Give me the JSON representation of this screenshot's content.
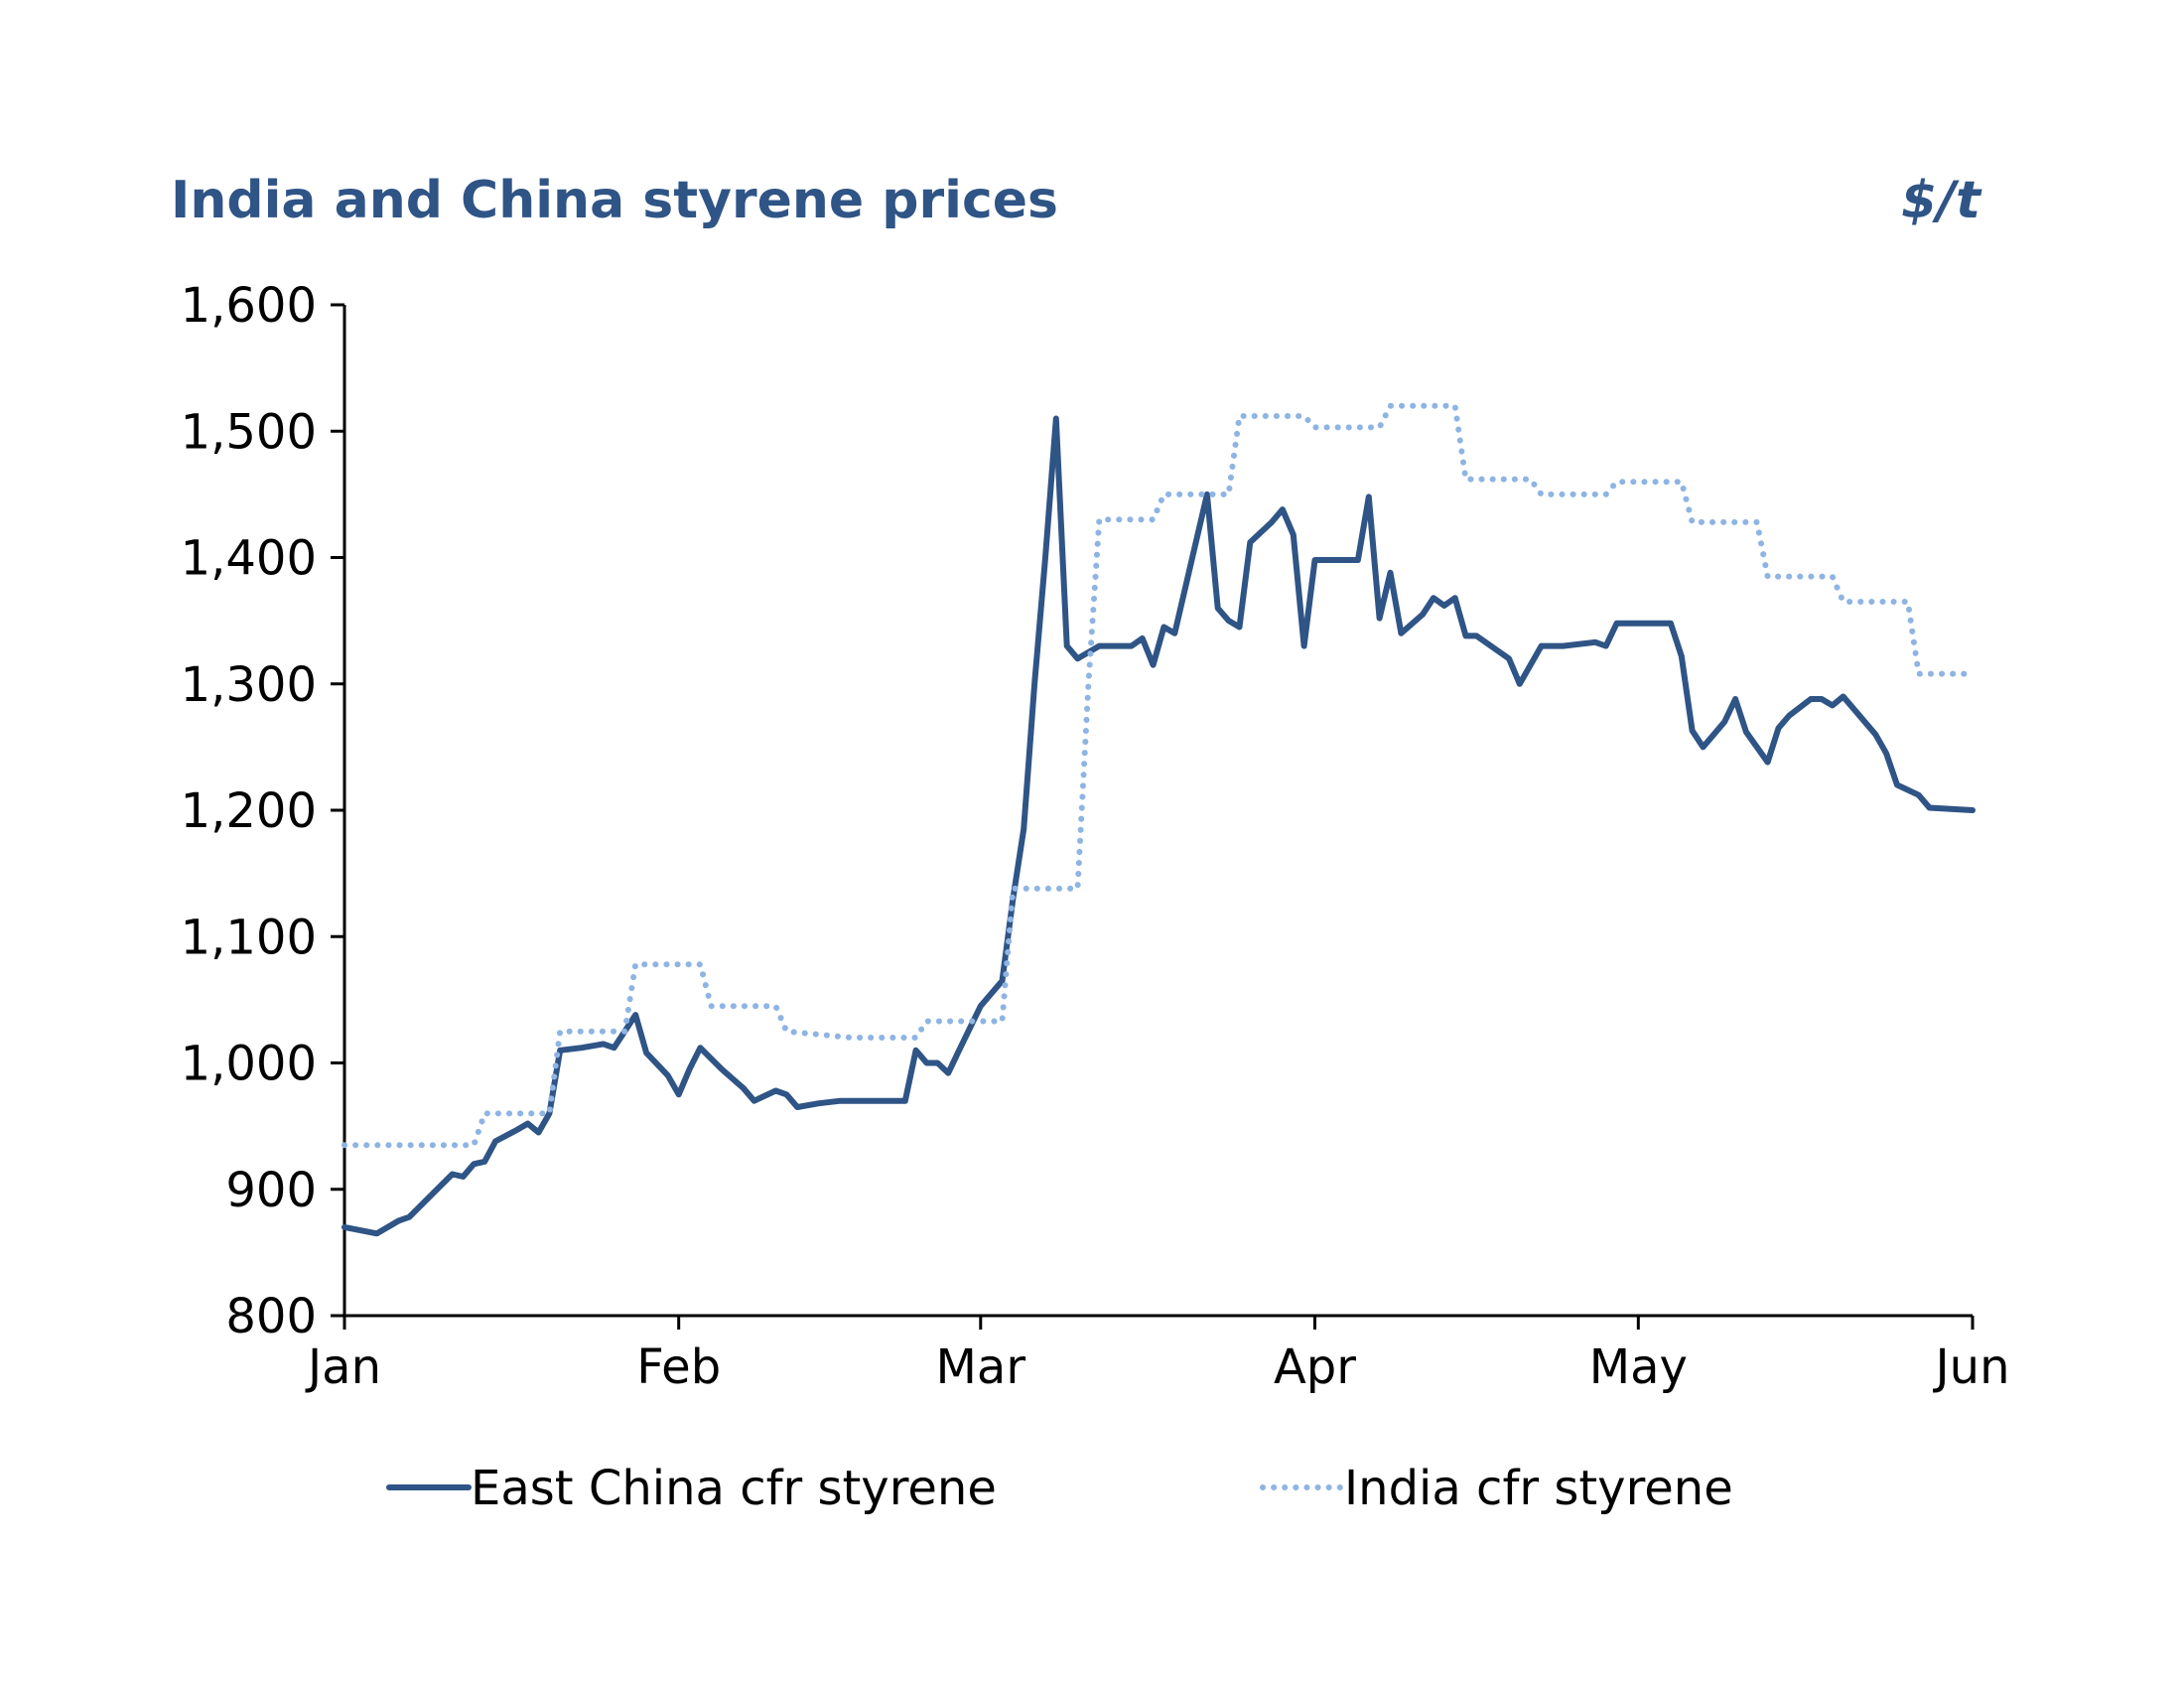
{
  "chart_data": {
    "type": "line",
    "title": "India and China styrene prices",
    "unit_label": "$/t",
    "xlabel": "",
    "ylabel": "",
    "ylim": [
      800,
      1600
    ],
    "y_ticks": [
      800,
      900,
      1000,
      1100,
      1200,
      1300,
      1400,
      1500,
      1600
    ],
    "y_tick_labels": [
      "800",
      "900",
      "1,000",
      "1,100",
      "1,200",
      "1,300",
      "1,400",
      "1,500",
      "1,600"
    ],
    "x_ticks": [
      0,
      31,
      59,
      90,
      120,
      151
    ],
    "x_tick_labels": [
      "Jan",
      "Feb",
      "Mar",
      "Apr",
      "May",
      "Jun"
    ],
    "legend_position": "bottom",
    "grid": false,
    "series": [
      {
        "name": "East China cfr styrene",
        "color": "#2f5486",
        "style": "solid",
        "points": [
          [
            0,
            870
          ],
          [
            3,
            865
          ],
          [
            5,
            875
          ],
          [
            6,
            878
          ],
          [
            8,
            895
          ],
          [
            10,
            912
          ],
          [
            11,
            910
          ],
          [
            12,
            920
          ],
          [
            13,
            922
          ],
          [
            14,
            938
          ],
          [
            16,
            947
          ],
          [
            17,
            952
          ],
          [
            18,
            945
          ],
          [
            19,
            960
          ],
          [
            20,
            1010
          ],
          [
            22,
            1012
          ],
          [
            24,
            1015
          ],
          [
            25,
            1012
          ],
          [
            27,
            1038
          ],
          [
            28,
            1008
          ],
          [
            30,
            990
          ],
          [
            31,
            975
          ],
          [
            32,
            995
          ],
          [
            33,
            1012
          ],
          [
            35,
            995
          ],
          [
            37,
            980
          ],
          [
            38,
            970
          ],
          [
            40,
            978
          ],
          [
            41,
            975
          ],
          [
            42,
            965
          ],
          [
            44,
            968
          ],
          [
            46,
            970
          ],
          [
            50,
            970
          ],
          [
            52,
            970
          ],
          [
            53,
            1010
          ],
          [
            54,
            1000
          ],
          [
            55,
            1000
          ],
          [
            56,
            992
          ],
          [
            57,
            1010
          ],
          [
            59,
            1045
          ],
          [
            61,
            1065
          ],
          [
            62,
            1130
          ],
          [
            63,
            1185
          ],
          [
            64,
            1300
          ],
          [
            65,
            1400
          ],
          [
            66,
            1510
          ],
          [
            67,
            1330
          ],
          [
            68,
            1320
          ],
          [
            69,
            1325
          ],
          [
            70,
            1330
          ],
          [
            73,
            1330
          ],
          [
            74,
            1336
          ],
          [
            75,
            1315
          ],
          [
            76,
            1345
          ],
          [
            77,
            1340
          ],
          [
            80,
            1450
          ],
          [
            81,
            1360
          ],
          [
            82,
            1350
          ],
          [
            83,
            1345
          ],
          [
            84,
            1412
          ],
          [
            86,
            1428
          ],
          [
            87,
            1438
          ],
          [
            88,
            1418
          ],
          [
            89,
            1330
          ],
          [
            90,
            1398
          ],
          [
            94,
            1398
          ],
          [
            95,
            1448
          ],
          [
            96,
            1352
          ],
          [
            97,
            1388
          ],
          [
            98,
            1340
          ],
          [
            100,
            1355
          ],
          [
            101,
            1368
          ],
          [
            102,
            1362
          ],
          [
            103,
            1368
          ],
          [
            104,
            1338
          ],
          [
            105,
            1338
          ],
          [
            108,
            1320
          ],
          [
            109,
            1300
          ],
          [
            111,
            1330
          ],
          [
            113,
            1330
          ],
          [
            116,
            1333
          ],
          [
            117,
            1330
          ],
          [
            118,
            1348
          ],
          [
            123,
            1348
          ],
          [
            124,
            1322
          ],
          [
            125,
            1263
          ],
          [
            126,
            1250
          ],
          [
            128,
            1270
          ],
          [
            129,
            1288
          ],
          [
            130,
            1262
          ],
          [
            132,
            1238
          ],
          [
            133,
            1265
          ],
          [
            134,
            1275
          ],
          [
            136,
            1288
          ],
          [
            137,
            1288
          ],
          [
            138,
            1283
          ],
          [
            139,
            1290
          ],
          [
            142,
            1260
          ],
          [
            143,
            1245
          ],
          [
            144,
            1220
          ],
          [
            146,
            1212
          ],
          [
            147,
            1202
          ],
          [
            151,
            1200
          ]
        ]
      },
      {
        "name": "India cfr styrene",
        "color": "#8eb4e3",
        "style": "dotted",
        "points": [
          [
            0,
            935
          ],
          [
            12,
            935
          ],
          [
            13,
            960
          ],
          [
            19,
            960
          ],
          [
            20,
            1025
          ],
          [
            26,
            1025
          ],
          [
            27,
            1078
          ],
          [
            33,
            1078
          ],
          [
            34,
            1045
          ],
          [
            40,
            1045
          ],
          [
            41,
            1025
          ],
          [
            47,
            1020
          ],
          [
            53,
            1020
          ],
          [
            54,
            1033
          ],
          [
            61,
            1033
          ],
          [
            62,
            1138
          ],
          [
            68,
            1138
          ],
          [
            69,
            1300
          ],
          [
            70,
            1430
          ],
          [
            75,
            1430
          ],
          [
            76,
            1450
          ],
          [
            82,
            1450
          ],
          [
            83,
            1512
          ],
          [
            89,
            1512
          ],
          [
            90,
            1503
          ],
          [
            96,
            1503
          ],
          [
            97,
            1520
          ],
          [
            103,
            1520
          ],
          [
            104,
            1462
          ],
          [
            110,
            1462
          ],
          [
            111,
            1450
          ],
          [
            117,
            1450
          ],
          [
            118,
            1460
          ],
          [
            124,
            1460
          ],
          [
            125,
            1428
          ],
          [
            131,
            1428
          ],
          [
            132,
            1385
          ],
          [
            138,
            1385
          ],
          [
            139,
            1365
          ],
          [
            145,
            1365
          ],
          [
            146,
            1308
          ],
          [
            151,
            1308
          ]
        ]
      }
    ]
  }
}
